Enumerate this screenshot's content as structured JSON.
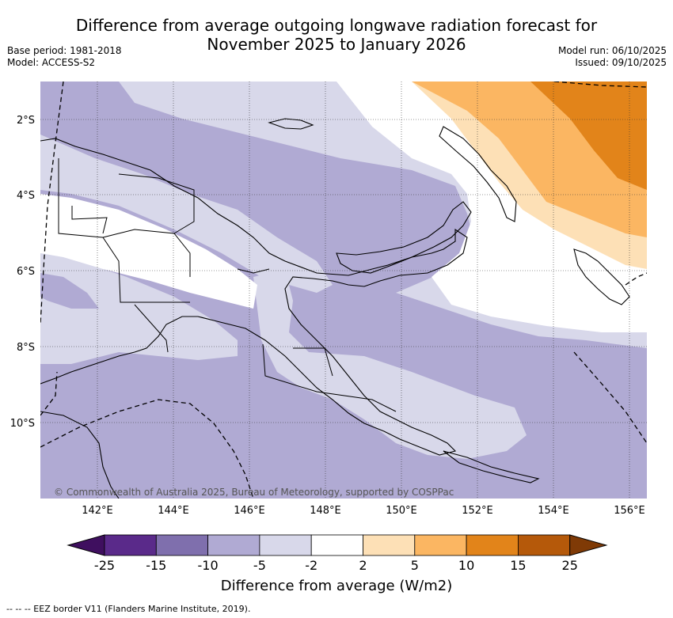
{
  "title_line1": "Difference from average outgoing longwave radiation forecast for",
  "title_line2": "November 2025 to January 2026",
  "base_period": "Base period: 1981-2018",
  "model": "Model: ACCESS-S2",
  "model_run": "Model run: 06/10/2025",
  "issued": "Issued: 09/10/2025",
  "copyright": "© Commonwealth of Australia 2025, Bureau of Meteorology, supported by COSPPac",
  "lat_labels": [
    "2°S",
    "4°S",
    "6°S",
    "8°S",
    "10°S"
  ],
  "lon_labels": [
    "142°E",
    "144°E",
    "146°E",
    "148°E",
    "150°E",
    "152°E",
    "154°E",
    "156°E"
  ],
  "colorbar": {
    "title": "Difference from average (W/m2)",
    "ticks": [
      "-25",
      "-15",
      "-10",
      "-5",
      "-2",
      "2",
      "5",
      "10",
      "15",
      "25"
    ],
    "colors": [
      "#3f0f5f",
      "#5a2a8a",
      "#7f6fad",
      "#b0aad3",
      "#d8d8ea",
      "#ffffff",
      "#fde0b6",
      "#fbb662",
      "#e2841a",
      "#b5590a",
      "#7f3a06"
    ]
  },
  "footer": "-- -- -- EEZ border V11 (Flanders Marine Institute, 2019)."
}
